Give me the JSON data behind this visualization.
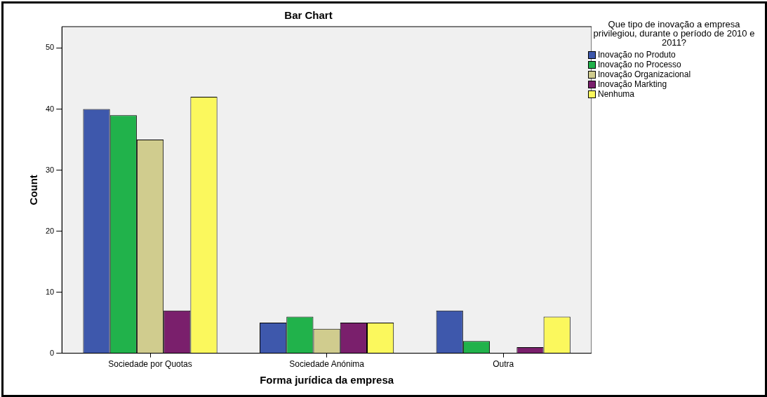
{
  "chart_data": {
    "type": "bar",
    "title": "Bar Chart",
    "xlabel": "Forma jurídica da empresa",
    "ylabel": "Count",
    "legend_title": "Que tipo de inovação a empresa privilegiou, durante o período de 2010 e 2011?",
    "categories": [
      "Sociedade por Quotas",
      "Sociedade Anónima",
      "Outra"
    ],
    "series": [
      {
        "name": "Inovação no Produto",
        "color": "#3e58ac",
        "values": [
          40,
          5,
          7
        ]
      },
      {
        "name": "Inovação no Processo",
        "color": "#21b24b",
        "values": [
          39,
          6,
          2
        ]
      },
      {
        "name": "Inovação Organizacional",
        "color": "#d0cc8e",
        "values": [
          35,
          4,
          null
        ]
      },
      {
        "name": "Inovação Markting",
        "color": "#7a1f6c",
        "values": [
          7,
          5,
          1
        ]
      },
      {
        "name": "Nenhuma",
        "color": "#fbf85d",
        "values": [
          42,
          5,
          6
        ]
      }
    ],
    "ylim": [
      0,
      53.5
    ],
    "yticks": [
      0,
      10,
      20,
      30,
      40,
      50
    ],
    "grid": false,
    "legend": "right"
  }
}
